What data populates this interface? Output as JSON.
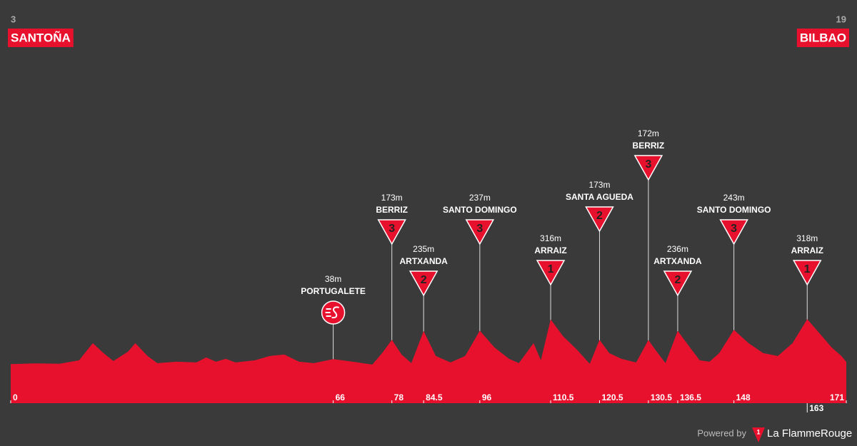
{
  "chart_data": {
    "type": "profile",
    "start": {
      "name": "SANTOÑA",
      "altitude": 3
    },
    "finish": {
      "name": "BILBAO",
      "altitude": 19
    },
    "color": "#e8112d",
    "xlim": [
      0,
      171
    ],
    "ylim": [
      -270,
      2500
    ],
    "xticks": [
      0,
      66,
      78,
      84.5,
      96,
      110.5,
      120.5,
      130.5,
      136.5,
      148,
      163,
      171
    ],
    "x": [
      0,
      5,
      10,
      14,
      16.8,
      19,
      21,
      24,
      25.5,
      28,
      30,
      34,
      38,
      40,
      42,
      44,
      46,
      50,
      53,
      56,
      59,
      62,
      66,
      70,
      74,
      76,
      78,
      80,
      82,
      84.5,
      87,
      90,
      93,
      96,
      99,
      102,
      104,
      107,
      108.5,
      110.5,
      113,
      116,
      118.5,
      120.5,
      122.5,
      125,
      128,
      130.5,
      132,
      134,
      136.5,
      139,
      141,
      143,
      145,
      148,
      151,
      154,
      157,
      160,
      163,
      166,
      168,
      170,
      171
    ],
    "values": [
      3,
      8,
      6,
      30,
      150,
      80,
      25,
      90,
      150,
      60,
      10,
      20,
      15,
      50,
      20,
      40,
      15,
      30,
      60,
      70,
      20,
      10,
      38,
      20,
      0,
      80,
      173,
      70,
      10,
      235,
      60,
      15,
      60,
      237,
      120,
      40,
      10,
      150,
      30,
      316,
      200,
      100,
      5,
      173,
      80,
      40,
      15,
      172,
      100,
      10,
      236,
      120,
      30,
      20,
      80,
      243,
      150,
      80,
      60,
      150,
      318,
      200,
      120,
      60,
      19
    ],
    "climbs": [
      {
        "name": "PORTUGALETE",
        "km": 66,
        "altitude": 38,
        "altitude_label": "38m",
        "category": null
      },
      {
        "name": "BERRIZ",
        "km": 78,
        "altitude": 173,
        "altitude_label": "173m",
        "category": 3
      },
      {
        "name": "ARTXANDA",
        "km": 84.5,
        "altitude": 235,
        "altitude_label": "235m",
        "category": 2
      },
      {
        "name": "SANTO DOMINGO",
        "km": 96,
        "altitude": 237,
        "altitude_label": "237m",
        "category": 3
      },
      {
        "name": "ARRAIZ",
        "km": 110.5,
        "altitude": 316,
        "altitude_label": "316m",
        "category": 1
      },
      {
        "name": "SANTA AGUEDA",
        "km": 120.5,
        "altitude": 173,
        "altitude_label": "173m",
        "category": 2
      },
      {
        "name": "BERRIZ",
        "km": 130.5,
        "altitude": 172,
        "altitude_label": "172m",
        "category": 3
      },
      {
        "name": "ARTXANDA",
        "km": 136.5,
        "altitude": 236,
        "altitude_label": "236m",
        "category": 2
      },
      {
        "name": "SANTO DOMINGO",
        "km": 148,
        "altitude": 243,
        "altitude_label": "243m",
        "category": 3
      },
      {
        "name": "ARRAIZ",
        "km": 163,
        "altitude": 318,
        "altitude_label": "318m",
        "category": 1
      }
    ]
  },
  "footer": {
    "powered": "Powered by",
    "logo_mark": "1",
    "brand": "La FlammeRouge"
  }
}
